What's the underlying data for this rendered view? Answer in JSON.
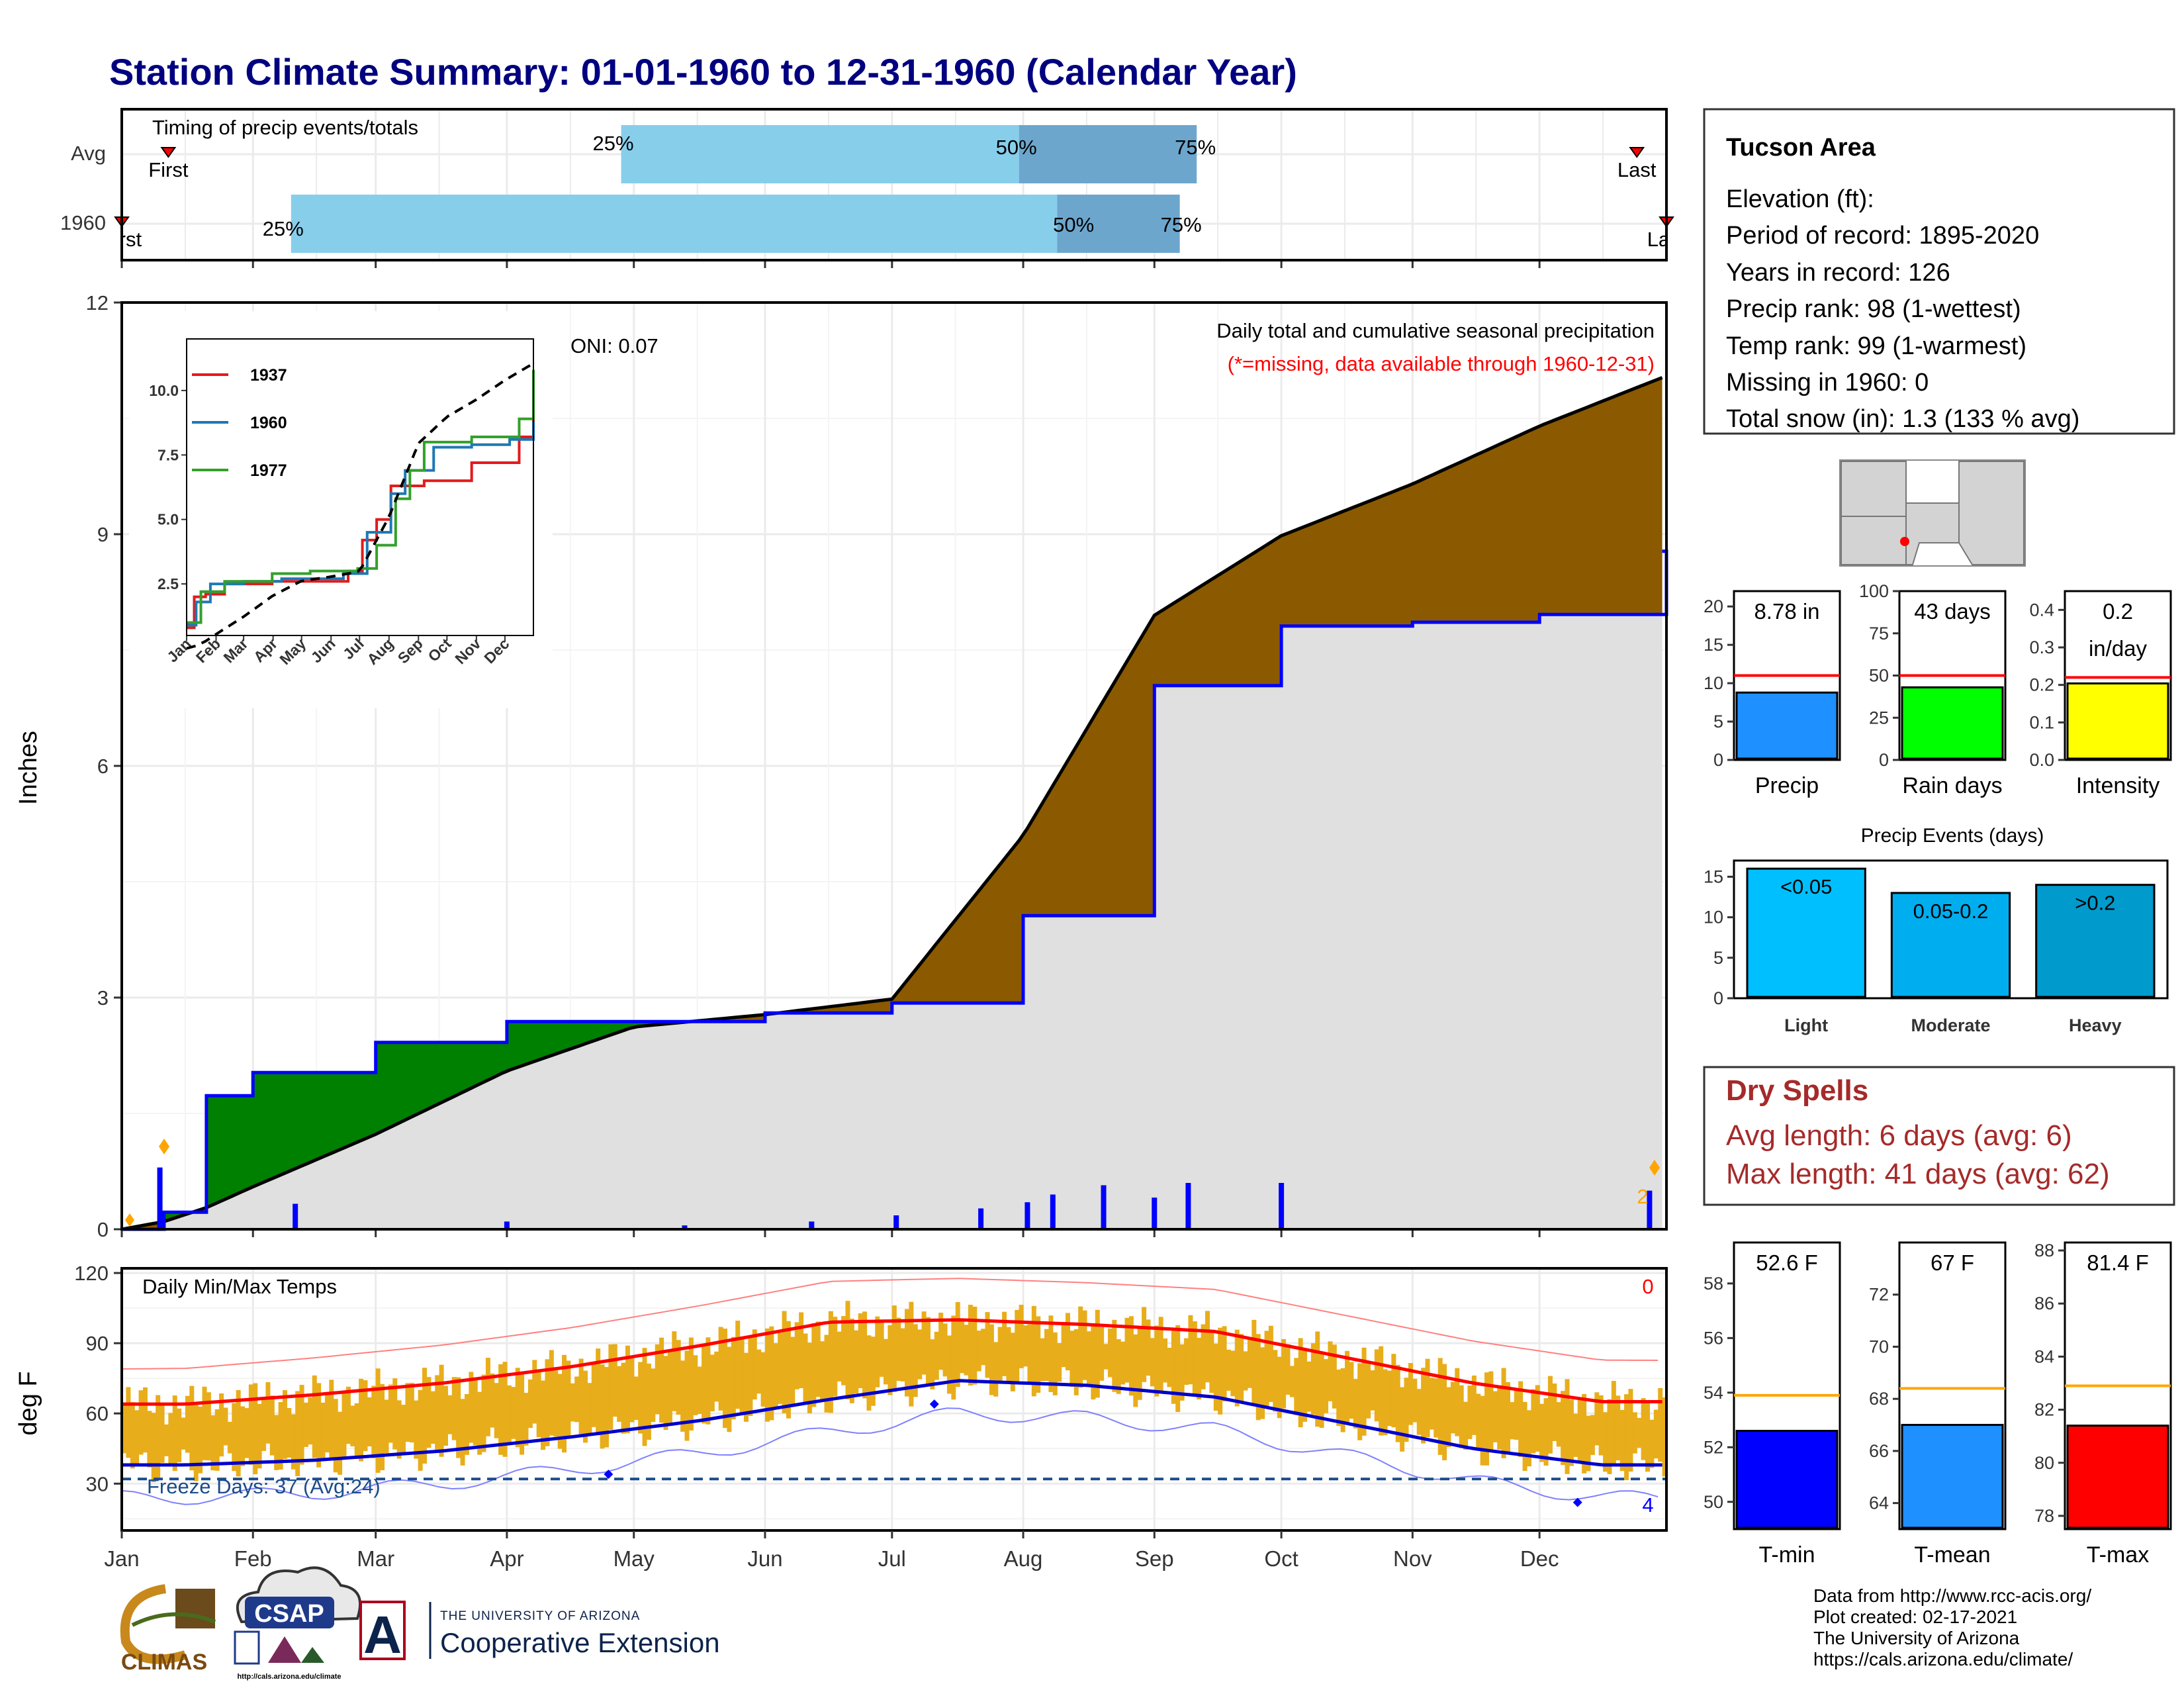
{
  "title": "Station Climate Summary: 01-01-1960 to 12-31-1960 (Calendar Year)",
  "colors": {
    "title": "#000080",
    "quartile_light": "#87ceeb",
    "quartile_dark": "#6ca6cd",
    "above_avg": "#8b5a00",
    "below_avg": "#008000",
    "avg_fill": "#e0e0e0",
    "daily_bar": "#0000ff",
    "temp_band": "#e8ad1a",
    "tmax_avg": "#ff0000",
    "tmin_avg": "#0000cc",
    "missing": "#ffa500"
  },
  "months": [
    "Jan",
    "Feb",
    "Mar",
    "Apr",
    "May",
    "Jun",
    "Jul",
    "Aug",
    "Sep",
    "Oct",
    "Nov",
    "Dec"
  ],
  "timing": {
    "label": "Timing of precip events/totals",
    "rows": [
      {
        "name": "Avg",
        "first_label": "First",
        "last_label": "Last",
        "first": "Jan 12",
        "last": "Dec 24",
        "p25": "Apr 28",
        "p50": "Jul 31",
        "p75": "Sep 11",
        "p25_label": "25%",
        "p50_label": "50%",
        "p75_label": "75%"
      },
      {
        "name": "1960",
        "first_label": "First",
        "last_label": "Last",
        "first": "Jan 1",
        "last": "Dec 31",
        "p25": "Feb 10",
        "p50": "Aug 9",
        "p75": "Sep 7",
        "p25_label": "25%",
        "p50_label": "50%",
        "p75_label": "75%"
      }
    ]
  },
  "precip": {
    "ylabel": "Inches",
    "title": "Daily total and cumulative seasonal precipitation",
    "note": "(*=missing, data available through 1960-12-31)",
    "oni": "ONI: 0.07",
    "missing_count": "2",
    "yticks": [
      "0",
      "3",
      "6",
      "9",
      "12"
    ]
  },
  "inset": {
    "yticks": [
      "2.5",
      "5.0",
      "7.5",
      "10.0"
    ],
    "xticks": [
      "Jan",
      "Feb",
      "Mar",
      "Apr",
      "May",
      "Jun",
      "Jul",
      "Aug",
      "Sep",
      "Oct",
      "Nov",
      "Dec"
    ],
    "series": [
      {
        "name": "1937",
        "color": "#e31a1c"
      },
      {
        "name": "1960",
        "color": "#1f78b4"
      },
      {
        "name": "1977",
        "color": "#33a02c"
      }
    ]
  },
  "temps": {
    "label": "Daily Min/Max Temps",
    "ylabel": "deg F",
    "yticks": [
      "30",
      "60",
      "90",
      "120"
    ],
    "freeze": "Freeze Days: 37 (Avg:24)",
    "missing_max": "0",
    "missing_min": "4"
  },
  "station": {
    "name": "Tucson Area",
    "lines": [
      "Elevation (ft):",
      "Period of record: 1895-2020",
      "Years in record: 126",
      "Precip rank: 98 (1-wettest)",
      "Temp rank: 99 (1-warmest)",
      "Missing in 1960: 0",
      "Total snow (in): 1.3 (133 % avg)"
    ]
  },
  "summary_bars": [
    {
      "label": "Precip",
      "value": 8.78,
      "avg": 11.0,
      "value_label": "8.78 in",
      "ticks": [
        "0",
        "5",
        "10",
        "15",
        "20"
      ],
      "ymin": 0,
      "ymax": 22,
      "color": "#1e90ff",
      "ref_color": "#ff0000"
    },
    {
      "label": "Rain days",
      "value": 43,
      "avg": 50,
      "value_label": "43 days",
      "ticks": [
        "0",
        "25",
        "50",
        "75",
        "100"
      ],
      "ymin": 0,
      "ymax": 100,
      "color": "#00ff00",
      "ref_color": "#ff0000"
    },
    {
      "label": "Intensity",
      "value": 0.204,
      "avg": 0.22,
      "value_label": "0.2\nin/day",
      "ticks": [
        "0.0",
        "0.1",
        "0.2",
        "0.3",
        "0.4"
      ],
      "ymin": 0,
      "ymax": 0.45,
      "color": "#ffff00",
      "ref_color": "#ff0000"
    }
  ],
  "events": {
    "title": "Precip Events (days)",
    "ticks": [
      "0",
      "5",
      "10",
      "15"
    ],
    "bars": [
      {
        "name": "Light",
        "range": "<0.05",
        "value": 16,
        "color": "#00bfff"
      },
      {
        "name": "Moderate",
        "range": "0.05-0.2",
        "value": 13,
        "color": "#00aeef"
      },
      {
        "name": "Heavy",
        "range": ">0.2",
        "value": 14,
        "color": "#009acd"
      }
    ]
  },
  "dry_spells": {
    "title": "Dry Spells",
    "avg": "Avg length: 6 days (avg: 6)",
    "max": "Max length: 41 days (avg: 62)"
  },
  "temp_bars": [
    {
      "label": "T-min",
      "value": 52.6,
      "avg": 53.9,
      "value_label": "52.6 F",
      "ticks": [
        "50",
        "52",
        "54",
        "56",
        "58"
      ],
      "ymin": 49,
      "ymax": 59.5,
      "color": "#0000ff",
      "ref_color": "#ffa500"
    },
    {
      "label": "T-mean",
      "value": 67,
      "avg": 68.4,
      "value_label": "67 F",
      "ticks": [
        "64",
        "66",
        "68",
        "70",
        "72"
      ],
      "ymin": 63,
      "ymax": 74,
      "color": "#1e90ff",
      "ref_color": "#ffa500"
    },
    {
      "label": "T-max",
      "value": 81.4,
      "avg": 82.9,
      "value_label": "81.4 F",
      "ticks": [
        "78",
        "80",
        "82",
        "84",
        "86",
        "88"
      ],
      "ymin": 77.5,
      "ymax": 88.3,
      "color": "#ff0000",
      "ref_color": "#ffa500"
    }
  ],
  "footer": {
    "lines": [
      "Data from http://www.rcc-acis.org/",
      "Plot created: 02-17-2021",
      "The University of Arizona",
      "https://cals.arizona.edu/climate/"
    ],
    "logo_climas": "CLIMAS",
    "logo_csap": "CSAP",
    "logo_csap_url": "http://cals.arizona.edu/climate",
    "logo_ua_small": "THE UNIVERSITY OF ARIZONA",
    "logo_ua_big": "Cooperative Extension",
    "logo_ua_letter": "A"
  },
  "chart_data": {
    "type": "area",
    "title": "Daily total and cumulative seasonal precipitation",
    "ylabel": "Inches",
    "ylim": [
      0,
      12
    ],
    "x": [
      "Jan 1",
      "Jan 11",
      "Jan 21",
      "Feb 1",
      "Mar 1",
      "Apr 1",
      "May 1",
      "Jun 1",
      "Jul 1",
      "Aug 1",
      "Sep 1",
      "Oct 1",
      "Nov 1",
      "Dec 1",
      "Dec 31"
    ],
    "series": [
      {
        "name": "1960",
        "values": [
          0.0,
          0.22,
          1.73,
          2.03,
          2.42,
          2.69,
          2.69,
          2.8,
          2.93,
          4.06,
          7.04,
          7.81,
          7.86,
          7.96,
          8.78
        ]
      },
      {
        "name": "Avg",
        "values": [
          0.0,
          0.1,
          0.28,
          0.55,
          1.23,
          2.05,
          2.62,
          2.78,
          2.98,
          5.1,
          7.95,
          8.98,
          9.65,
          10.4,
          11.05
        ]
      }
    ],
    "daily_precip": [
      {
        "date": "Jan 10",
        "value": 0.8
      },
      {
        "date": "Feb 11",
        "value": 0.33
      },
      {
        "date": "Apr 1",
        "value": 0.1
      },
      {
        "date": "May 13",
        "value": 0.05
      },
      {
        "date": "Jun 12",
        "value": 0.1
      },
      {
        "date": "Jul 2",
        "value": 0.18
      },
      {
        "date": "Jul 22",
        "value": 0.27
      },
      {
        "date": "Aug 2",
        "value": 0.35
      },
      {
        "date": "Aug 8",
        "value": 0.45
      },
      {
        "date": "Aug 20",
        "value": 0.57
      },
      {
        "date": "Sep 1",
        "value": 0.41
      },
      {
        "date": "Sep 9",
        "value": 0.6
      },
      {
        "date": "Oct 1",
        "value": 0.6
      },
      {
        "date": "Dec 27",
        "value": 0.5
      }
    ],
    "temps": {
      "ylim": [
        10,
        122
      ],
      "avg_max_monthly": [
        64,
        68,
        73,
        80,
        89,
        99,
        100,
        98,
        95,
        84,
        73,
        65
      ],
      "avg_min_monthly": [
        38,
        40,
        44,
        50,
        57,
        66,
        74,
        72,
        67,
        56,
        45,
        38
      ],
      "freeze_line": 32
    }
  }
}
